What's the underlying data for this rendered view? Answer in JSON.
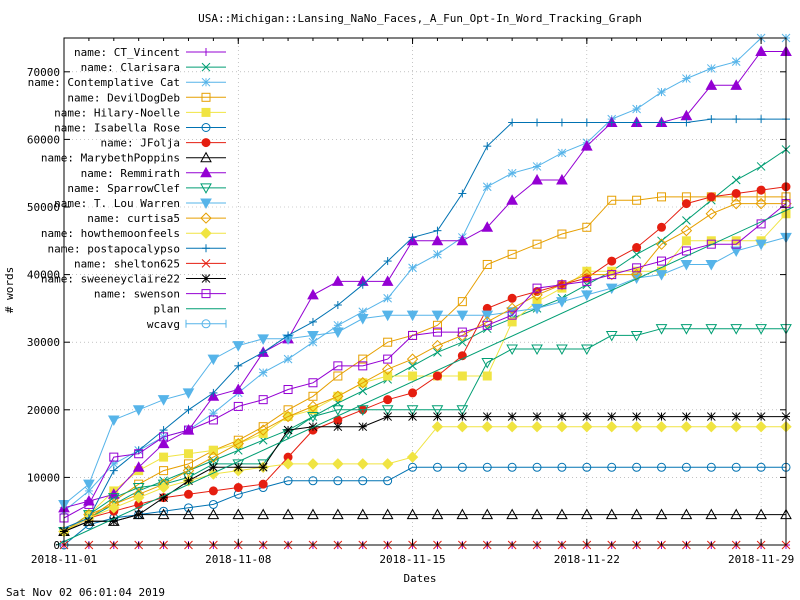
{
  "chart_data": {
    "type": "line",
    "title": "USA::Michigan::Lansing_NaNo_Faces,_A_Fun_Opt-In_Word_Tracking_Graph",
    "xlabel": "Dates",
    "ylabel": "# words",
    "footer": "Sat Nov 02 06:01:04 2019",
    "x_day_range": [
      1,
      30
    ],
    "xlim": [
      "2018-11-01",
      "2018-11-30"
    ],
    "ylim": [
      0,
      75000
    ],
    "x_ticks": [
      {
        "day": 1,
        "label": "2018-11-01"
      },
      {
        "day": 8,
        "label": "2018-11-08"
      },
      {
        "day": 15,
        "label": "2018-11-15"
      },
      {
        "day": 22,
        "label": "2018-11-22"
      },
      {
        "day": 29,
        "label": "2018-11-29"
      }
    ],
    "y_ticks": [
      {
        "v": 0,
        "label": "0"
      },
      {
        "v": 10000,
        "label": "10000"
      },
      {
        "v": 20000,
        "label": "20000"
      },
      {
        "v": 30000,
        "label": "30000"
      },
      {
        "v": 40000,
        "label": "40000"
      },
      {
        "v": 50000,
        "label": "50000"
      },
      {
        "v": 60000,
        "label": "60000"
      },
      {
        "v": 70000,
        "label": "70000"
      }
    ],
    "grid": true,
    "legend_position": "top-left",
    "series": [
      {
        "name": "name: CT_Vincent",
        "color": "#9400d3",
        "marker": "plus",
        "x": [
          1,
          2,
          3,
          4,
          5,
          6,
          7,
          8,
          9,
          10,
          11,
          12,
          13,
          14,
          15,
          16,
          17,
          18,
          19,
          20,
          21,
          22,
          23,
          24,
          25,
          26,
          27,
          28,
          29,
          30
        ],
        "y": [
          0,
          0,
          0,
          0,
          0,
          0,
          0,
          0,
          0,
          0,
          0,
          0,
          0,
          0,
          0,
          0,
          0,
          0,
          0,
          0,
          0,
          0,
          0,
          0,
          0,
          0,
          0,
          0,
          0,
          0
        ]
      },
      {
        "name": "name: Clarisara",
        "color": "#009e73",
        "marker": "cross",
        "x": [
          1,
          2,
          3,
          4,
          5,
          6,
          7,
          8,
          9,
          10,
          11,
          12,
          13,
          14,
          15,
          16,
          17,
          18,
          19,
          20,
          21,
          22,
          23,
          24,
          25,
          26,
          27,
          28,
          29,
          30
        ],
        "y": [
          2000,
          4000,
          6000,
          8000,
          9500,
          11000,
          12500,
          14000,
          15500,
          17000,
          19000,
          21000,
          22800,
          24500,
          26500,
          28500,
          30000,
          32000,
          33500,
          35000,
          36500,
          38500,
          40500,
          43000,
          45000,
          48000,
          51000,
          54000,
          56000,
          58500
        ]
      },
      {
        "name": "name: Contemplative Cat",
        "color": "#56b4e9",
        "marker": "star",
        "x": [
          1,
          2,
          3,
          4,
          5,
          6,
          7,
          8,
          9,
          10,
          11,
          12,
          13,
          14,
          15,
          16,
          17,
          18,
          19,
          20,
          21,
          22,
          23,
          24,
          25,
          26,
          27,
          28,
          29,
          30
        ],
        "y": [
          5000,
          8000,
          12000,
          14000,
          16000,
          17000,
          19500,
          22500,
          25500,
          27500,
          30000,
          32500,
          34500,
          36500,
          41000,
          43000,
          45500,
          53000,
          55000,
          56000,
          58000,
          59500,
          63000,
          64500,
          67000,
          69000,
          70500,
          71500,
          75000,
          75000
        ]
      },
      {
        "name": "name: DevilDogDeb",
        "color": "#e69f00",
        "marker": "square",
        "x": [
          1,
          2,
          3,
          4,
          5,
          6,
          7,
          8,
          9,
          10,
          11,
          12,
          13,
          14,
          15,
          16,
          17,
          18,
          19,
          20,
          21,
          22,
          23,
          24,
          25,
          26,
          27,
          28,
          29,
          30
        ],
        "y": [
          2000,
          4000,
          6500,
          9000,
          11000,
          12000,
          14000,
          15500,
          17500,
          20000,
          22000,
          25000,
          27500,
          30000,
          31000,
          32500,
          36000,
          41500,
          43000,
          44500,
          46000,
          47000,
          51000,
          51000,
          51500,
          51500,
          51500,
          51500,
          51500,
          51500
        ]
      },
      {
        "name": "name: Hilary-Noelle",
        "color": "#f0e442",
        "marker": "filled-square",
        "x": [
          1,
          2,
          3,
          4,
          5,
          6,
          7,
          8,
          9,
          10,
          11,
          12,
          13,
          14,
          15,
          16,
          17,
          18,
          19,
          20,
          21,
          22,
          23,
          24,
          25,
          26,
          27,
          28,
          29,
          30
        ],
        "y": [
          2000,
          4500,
          8000,
          11000,
          13000,
          13500,
          14000,
          15000,
          16500,
          19000,
          20000,
          22000,
          24000,
          25000,
          25000,
          25000,
          25000,
          25000,
          33000,
          36000,
          38000,
          40500,
          40500,
          40500,
          40500,
          45000,
          45000,
          45000,
          45000,
          49000
        ]
      },
      {
        "name": "name: Isabella Rose",
        "color": "#0072b2",
        "marker": "circle",
        "x": [
          1,
          2,
          3,
          4,
          5,
          6,
          7,
          8,
          9,
          10,
          11,
          12,
          13,
          14,
          15,
          16,
          17,
          18,
          19,
          20,
          21,
          22,
          23,
          24,
          25,
          26,
          27,
          28,
          29,
          30
        ],
        "y": [
          0,
          3000,
          4000,
          4500,
          5000,
          5500,
          6000,
          7500,
          8500,
          9500,
          9500,
          9500,
          9500,
          9500,
          11500,
          11500,
          11500,
          11500,
          11500,
          11500,
          11500,
          11500,
          11500,
          11500,
          11500,
          11500,
          11500,
          11500,
          11500,
          11500
        ]
      },
      {
        "name": "name: JFolja",
        "color": "#e51e10",
        "marker": "filled-circle",
        "x": [
          1,
          2,
          3,
          4,
          5,
          6,
          7,
          8,
          9,
          10,
          11,
          12,
          13,
          14,
          15,
          16,
          17,
          18,
          19,
          20,
          21,
          22,
          23,
          24,
          25,
          26,
          27,
          28,
          29,
          30
        ],
        "y": [
          2000,
          4000,
          5000,
          6000,
          7000,
          7500,
          8000,
          8500,
          9000,
          13000,
          17000,
          18500,
          20000,
          21500,
          22500,
          25000,
          28000,
          35000,
          36500,
          37500,
          38500,
          39500,
          42000,
          44000,
          47000,
          50500,
          51500,
          52000,
          52500,
          53000
        ]
      },
      {
        "name": "name: MarybethPoppins",
        "color": "#000000",
        "marker": "triangle",
        "x": [
          1,
          2,
          3,
          4,
          5,
          6,
          7,
          8,
          9,
          10,
          11,
          12,
          13,
          14,
          15,
          16,
          17,
          18,
          19,
          20,
          21,
          22,
          23,
          24,
          25,
          26,
          27,
          28,
          29,
          30
        ],
        "y": [
          2000,
          3500,
          3500,
          4500,
          4500,
          4500,
          4500,
          4500,
          4500,
          4500,
          4500,
          4500,
          4500,
          4500,
          4500,
          4500,
          4500,
          4500,
          4500,
          4500,
          4500,
          4500,
          4500,
          4500,
          4500,
          4500,
          4500,
          4500,
          4500,
          4500
        ]
      },
      {
        "name": "name: Remmirath",
        "color": "#9400d3",
        "marker": "filled-triangle",
        "x": [
          1,
          2,
          3,
          4,
          5,
          6,
          7,
          8,
          9,
          10,
          11,
          12,
          13,
          14,
          15,
          16,
          17,
          18,
          19,
          20,
          21,
          22,
          23,
          24,
          25,
          26,
          27,
          28,
          29,
          30
        ],
        "y": [
          5500,
          6500,
          7500,
          11500,
          15000,
          17000,
          22000,
          23000,
          28500,
          30500,
          37000,
          39000,
          39000,
          39000,
          45000,
          45000,
          45000,
          47000,
          51000,
          54000,
          54000,
          59000,
          62500,
          62500,
          62500,
          63500,
          68000,
          68000,
          73000,
          73000
        ]
      },
      {
        "name": "name: SparrowClef",
        "color": "#009e73",
        "marker": "triangle-down",
        "x": [
          1,
          2,
          3,
          4,
          5,
          6,
          7,
          8,
          9,
          10,
          11,
          12,
          13,
          14,
          15,
          16,
          17,
          18,
          19,
          20,
          21,
          22,
          23,
          24,
          25,
          26,
          27,
          28,
          29,
          30
        ],
        "y": [
          2000,
          4500,
          7000,
          8500,
          9000,
          10000,
          12000,
          12000,
          12000,
          16500,
          19000,
          20000,
          20000,
          20000,
          20000,
          20000,
          20000,
          27000,
          29000,
          29000,
          29000,
          29000,
          31000,
          31000,
          32000,
          32000,
          32000,
          32000,
          32000,
          32000
        ]
      },
      {
        "name": "name: T. Lou Warren",
        "color": "#56b4e9",
        "marker": "filled-triangle-down",
        "x": [
          1,
          2,
          3,
          4,
          5,
          6,
          7,
          8,
          9,
          10,
          11,
          12,
          13,
          14,
          15,
          16,
          17,
          18,
          19,
          20,
          21,
          22,
          23,
          24,
          25,
          26,
          27,
          28,
          29,
          30
        ],
        "y": [
          6000,
          9000,
          18500,
          20000,
          21500,
          22500,
          27500,
          29500,
          30500,
          30500,
          31000,
          31500,
          33500,
          34000,
          34000,
          34000,
          34000,
          34000,
          34500,
          35000,
          36000,
          37000,
          38000,
          39500,
          40000,
          41500,
          41500,
          43500,
          44500,
          45500
        ]
      },
      {
        "name": "name: curtisa5",
        "color": "#e69f00",
        "marker": "diamond",
        "x": [
          1,
          2,
          3,
          4,
          5,
          6,
          7,
          8,
          9,
          10,
          11,
          12,
          13,
          14,
          15,
          16,
          17,
          18,
          19,
          20,
          21,
          22,
          23,
          24,
          25,
          26,
          27,
          28,
          29,
          30
        ],
        "y": [
          2000,
          4500,
          6000,
          7500,
          9000,
          11000,
          13000,
          15000,
          17000,
          19000,
          20500,
          22000,
          24000,
          26000,
          27500,
          29500,
          31000,
          33000,
          35000,
          37000,
          38500,
          40000,
          40000,
          40000,
          44500,
          46500,
          49000,
          50500,
          50500,
          50500
        ]
      },
      {
        "name": "name: howthemoonfeels",
        "color": "#f0e442",
        "marker": "filled-diamond",
        "x": [
          1,
          2,
          3,
          4,
          5,
          6,
          7,
          8,
          9,
          10,
          11,
          12,
          13,
          14,
          15,
          16,
          17,
          18,
          19,
          20,
          21,
          22,
          23,
          24,
          25,
          26,
          27,
          28,
          29,
          30
        ],
        "y": [
          2000,
          4000,
          5500,
          7000,
          8500,
          9500,
          10500,
          11000,
          11500,
          12000,
          12000,
          12000,
          12000,
          12000,
          13000,
          17500,
          17500,
          17500,
          17500,
          17500,
          17500,
          17500,
          17500,
          17500,
          17500,
          17500,
          17500,
          17500,
          17500,
          17500
        ]
      },
      {
        "name": "name: postapocalypso",
        "color": "#0072b2",
        "marker": "plus",
        "x": [
          1,
          2,
          3,
          4,
          5,
          6,
          7,
          8,
          9,
          10,
          11,
          12,
          13,
          14,
          15,
          16,
          17,
          18,
          19,
          20,
          21,
          22,
          23,
          24,
          25,
          26,
          27,
          28,
          29,
          30
        ],
        "y": [
          2500,
          4000,
          11000,
          14000,
          17000,
          20000,
          22500,
          26500,
          28500,
          31000,
          33000,
          35500,
          38500,
          42000,
          45500,
          46500,
          52000,
          59000,
          62500,
          62500,
          62500,
          62500,
          62500,
          62500,
          62500,
          62500,
          63000,
          63000,
          63000,
          63000
        ]
      },
      {
        "name": "name: shelton625",
        "color": "#e51e10",
        "marker": "cross",
        "x": [
          1,
          2,
          3,
          4,
          5,
          6,
          7,
          8,
          9,
          10,
          11,
          12,
          13,
          14,
          15,
          16,
          17,
          18,
          19,
          20,
          21,
          22,
          23,
          24,
          25,
          26,
          27,
          28,
          29,
          30
        ],
        "y": [
          0,
          0,
          0,
          0,
          0,
          0,
          0,
          0,
          0,
          0,
          0,
          0,
          0,
          0,
          0,
          0,
          0,
          0,
          0,
          0,
          0,
          0,
          0,
          0,
          0,
          0,
          0,
          0,
          0,
          0
        ]
      },
      {
        "name": "name: sweeneyclaire22",
        "color": "#000000",
        "marker": "asterisk",
        "x": [
          1,
          2,
          3,
          4,
          5,
          6,
          7,
          8,
          9,
          10,
          11,
          12,
          13,
          14,
          15,
          16,
          17,
          18,
          19,
          20,
          21,
          22,
          23,
          24,
          25,
          26,
          27,
          28,
          29,
          30
        ],
        "y": [
          2000,
          3500,
          3500,
          4500,
          7000,
          9500,
          11500,
          11500,
          11500,
          17000,
          17500,
          17500,
          17500,
          19000,
          19000,
          19000,
          19000,
          19000,
          19000,
          19000,
          19000,
          19000,
          19000,
          19000,
          19000,
          19000,
          19000,
          19000,
          19000,
          19000
        ]
      },
      {
        "name": "name: swenson",
        "color": "#9400d3",
        "marker": "square",
        "x": [
          1,
          2,
          3,
          4,
          5,
          6,
          7,
          8,
          9,
          10,
          11,
          12,
          13,
          14,
          15,
          16,
          17,
          18,
          19,
          20,
          21,
          22,
          23,
          24,
          25,
          26,
          27,
          28,
          29,
          30
        ],
        "y": [
          4000,
          6000,
          13000,
          13500,
          16000,
          17000,
          18500,
          20500,
          21500,
          23000,
          24000,
          26500,
          26500,
          27500,
          31000,
          31500,
          31500,
          32500,
          34000,
          38000,
          38500,
          39000,
          40000,
          41000,
          42000,
          43500,
          44500,
          44500,
          47500,
          50500
        ]
      },
      {
        "name": "plan",
        "color": "#009e73",
        "marker": "none",
        "x": [
          0.7,
          30.3
        ],
        "y": [
          0,
          50000
        ]
      },
      {
        "name": "wcavg",
        "color": "#56b4e9",
        "marker": "circle-errorbar",
        "hidden_in_plot": true,
        "x": [],
        "y": []
      }
    ]
  }
}
